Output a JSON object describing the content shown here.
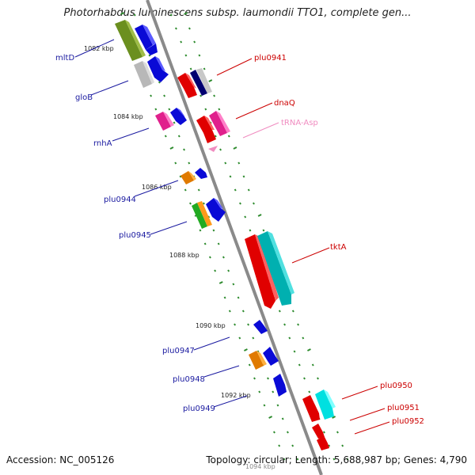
{
  "title": "Photorhabdus luminescens subsp. laumondii TTO1, complete gen...",
  "footer": {
    "accession": "Accession: NC_005126",
    "topology": "Topology: circular; Length: 5,688,987 bp; Genes: 4,790"
  },
  "colors": {
    "backbone": "#8a8a8a",
    "tick": "#2e8b2e",
    "label_left": "#1a1aa0",
    "label_right": "#cc0000",
    "label_trna": "#f08cc0",
    "scale_text": "#222222"
  },
  "scale_labels": [
    "1082 kbp",
    "1084 kbp",
    "1086 kbp",
    "1088 kbp",
    "1090 kbp",
    "1092 kbp",
    "1094 kbp"
  ],
  "left_genes": [
    "mltD",
    "gloB",
    "rnhA",
    "plu0944",
    "plu0945",
    "plu0947",
    "plu0948",
    "plu0949"
  ],
  "right_genes": [
    "plu0941",
    "dnaQ",
    "tRNA-Asp",
    "tktA",
    "plu0950",
    "plu0951",
    "plu0952"
  ]
}
